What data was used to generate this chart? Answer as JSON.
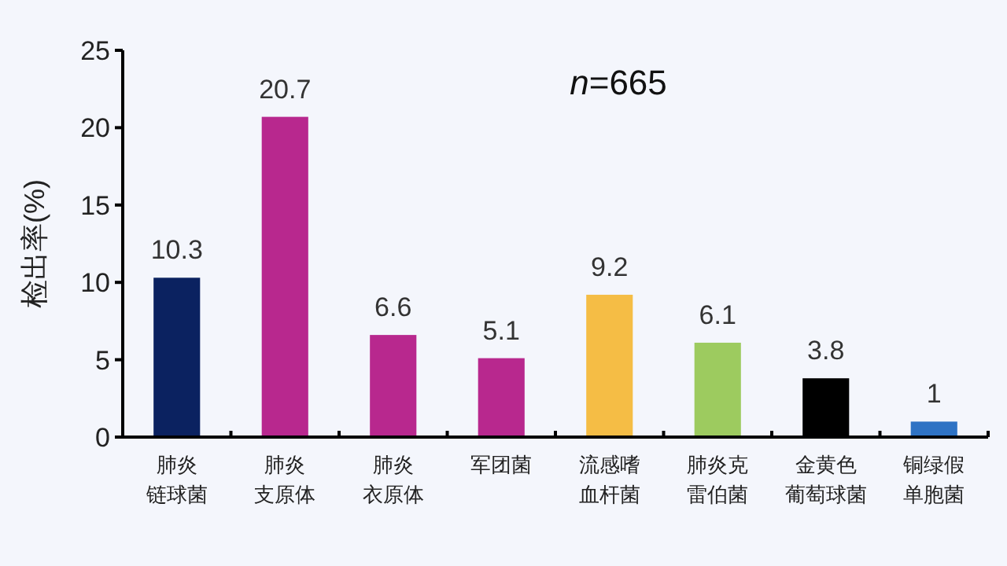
{
  "chart_data": {
    "type": "bar",
    "ylabel": "检出率(%)",
    "annotations": [
      "*n*=665"
    ],
    "categories": [
      "肺炎链球菌",
      "肺炎支原体",
      "肺炎衣原体",
      "军团菌",
      "流感嗜血杆菌",
      "肺炎克雷伯菌",
      "金黄色葡萄球菌",
      "铜绿假单胞菌"
    ],
    "values": [
      10.3,
      20.7,
      6.6,
      5.1,
      9.2,
      6.1,
      3.8,
      1
    ],
    "colors": [
      "#0b2260",
      "#b8288e",
      "#b8288e",
      "#b8288e",
      "#f5bd45",
      "#9dcb5f",
      "#000000",
      "#2f73c4"
    ],
    "ylim": [
      0,
      25
    ],
    "yticks": [
      0,
      5,
      10,
      15,
      20,
      25
    ],
    "data_labels": true,
    "grid": false
  }
}
